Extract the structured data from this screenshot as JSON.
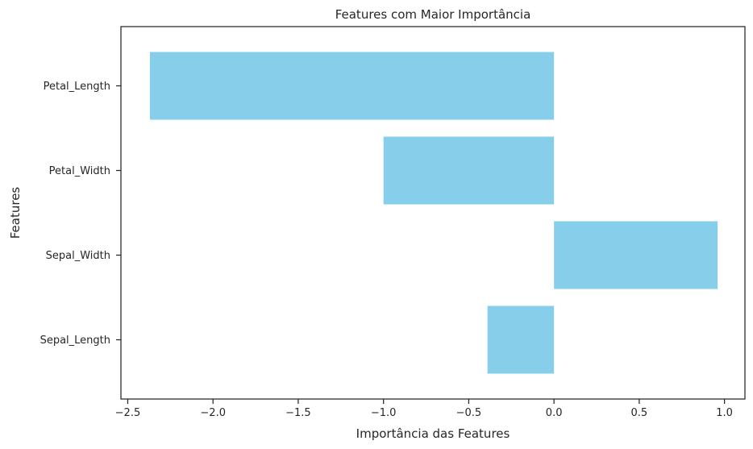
{
  "chart_data": {
    "type": "bar",
    "orientation": "horizontal",
    "title": "Features com Maior Importância",
    "xlabel": "Importância das Features",
    "ylabel": "Features",
    "categories": [
      "Sepal_Length",
      "Sepal_Width",
      "Petal_Width",
      "Petal_Length"
    ],
    "values": [
      -0.39,
      0.96,
      -1.0,
      -2.37
    ],
    "xlim": [
      -2.54,
      1.12
    ],
    "xticks": [
      -2.5,
      -2.0,
      -1.5,
      -1.0,
      -0.5,
      0.0,
      0.5,
      1.0
    ],
    "xtick_labels": [
      "−2.5",
      "−2.0",
      "−1.5",
      "−1.0",
      "−0.5",
      "0.0",
      "0.5",
      "1.0"
    ],
    "bar_color": "#87ceeb",
    "grid": false,
    "legend": "none"
  }
}
